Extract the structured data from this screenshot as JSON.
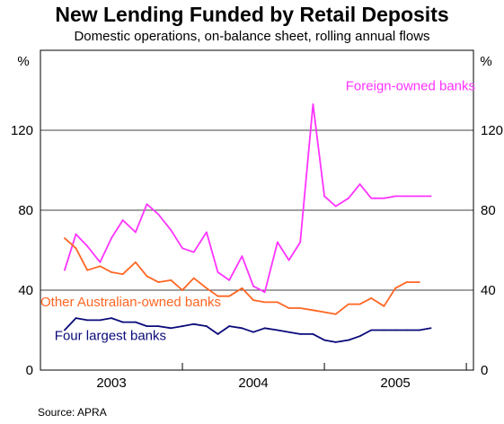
{
  "chart_data": {
    "type": "line",
    "title": "New Lending Funded by Retail Deposits",
    "subtitle": "Domestic operations, on-balance sheet, rolling annual flows",
    "source": "Source: APRA",
    "ylabel_left": "%",
    "ylabel_right": "%",
    "ylim": [
      0,
      160
    ],
    "yticks": [
      0,
      40,
      80,
      120
    ],
    "xlim": [
      2002.5,
      2005.55
    ],
    "xticks": [
      {
        "label": "2003",
        "value": 2003.0
      },
      {
        "label": "2004",
        "value": 2004.0
      },
      {
        "label": "2005",
        "value": 2005.0
      }
    ],
    "xgrid_boundaries": [
      2002.5,
      2003.5,
      2004.5,
      2005.5
    ],
    "grid": "horizontal",
    "series": [
      {
        "name": "Foreign-owned banks",
        "color": "#ff33ff",
        "label_anchor": [
          2004.65,
          140
        ],
        "x": [
          2002.67,
          2002.75,
          2002.83,
          2002.92,
          2003.0,
          2003.08,
          2003.17,
          2003.25,
          2003.33,
          2003.42,
          2003.5,
          2003.58,
          2003.67,
          2003.75,
          2003.83,
          2003.92,
          2004.0,
          2004.08,
          2004.17,
          2004.25,
          2004.33,
          2004.42,
          2004.5,
          2004.58,
          2004.67,
          2004.75,
          2004.83,
          2004.92,
          2005.0,
          2005.08,
          2005.17,
          2005.25
        ],
        "values": [
          50,
          68,
          62,
          54,
          66,
          75,
          69,
          83,
          78,
          70,
          61,
          59,
          69,
          49,
          45,
          57,
          42,
          39,
          64,
          55,
          64,
          133,
          87,
          82,
          86,
          93,
          86,
          86,
          87,
          87,
          87,
          87
        ]
      },
      {
        "name": "Other Australian-owned banks",
        "color": "#ff6622",
        "label_anchor": [
          2002.5,
          32
        ],
        "x": [
          2002.67,
          2002.75,
          2002.83,
          2002.92,
          2003.0,
          2003.08,
          2003.17,
          2003.25,
          2003.33,
          2003.42,
          2003.5,
          2003.58,
          2003.67,
          2003.75,
          2003.83,
          2003.92,
          2004.0,
          2004.08,
          2004.17,
          2004.25,
          2004.33,
          2004.42,
          2004.5,
          2004.58,
          2004.67,
          2004.75,
          2004.83,
          2004.92,
          2005.0,
          2005.08,
          2005.17
        ],
        "values": [
          66,
          61,
          50,
          52,
          49,
          48,
          54,
          47,
          44,
          45,
          40,
          46,
          41,
          37,
          37,
          41,
          35,
          34,
          34,
          31,
          31,
          30,
          29,
          28,
          33,
          33,
          36,
          32,
          41,
          44,
          44
        ]
      },
      {
        "name": "Four largest banks",
        "color": "#0a0a7a",
        "label_anchor": [
          2002.6,
          15
        ],
        "x": [
          2002.67,
          2002.75,
          2002.83,
          2002.92,
          2003.0,
          2003.08,
          2003.17,
          2003.25,
          2003.33,
          2003.42,
          2003.5,
          2003.58,
          2003.67,
          2003.75,
          2003.83,
          2003.92,
          2004.0,
          2004.08,
          2004.17,
          2004.25,
          2004.33,
          2004.42,
          2004.5,
          2004.58,
          2004.67,
          2004.75,
          2004.83,
          2004.92,
          2005.0,
          2005.08,
          2005.17,
          2005.25
        ],
        "values": [
          20,
          26,
          25,
          25,
          26,
          24,
          24,
          22,
          22,
          21,
          22,
          23,
          22,
          18,
          22,
          21,
          19,
          21,
          20,
          19,
          18,
          18,
          15,
          14,
          15,
          17,
          20,
          20,
          20,
          20,
          20,
          21
        ]
      }
    ]
  }
}
